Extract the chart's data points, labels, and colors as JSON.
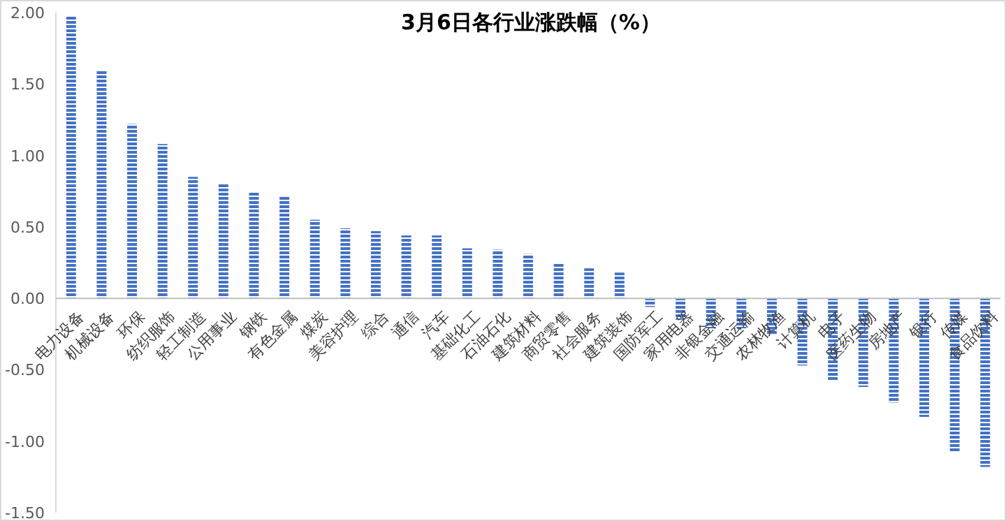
{
  "chart_data": {
    "type": "bar",
    "title": "3月6日各行业涨跌幅（%）",
    "categories": [
      "电力设备",
      "机械设备",
      "环保",
      "纺织服饰",
      "轻工制造",
      "公用事业",
      "钢铁",
      "有色金属",
      "煤炭",
      "美容护理",
      "综合",
      "通信",
      "汽车",
      "基础化工",
      "石油石化",
      "建筑材料",
      "商贸零售",
      "社会服务",
      "建筑装饰",
      "国防军工",
      "家用电器",
      "非银金融",
      "交通运输",
      "农林牧渔",
      "计算机",
      "电子",
      "医药生物",
      "房地产",
      "银行",
      "传媒",
      "食品饮料"
    ],
    "values": [
      1.98,
      1.59,
      1.22,
      1.08,
      0.85,
      0.8,
      0.74,
      0.72,
      0.55,
      0.49,
      0.47,
      0.44,
      0.44,
      0.35,
      0.34,
      0.31,
      0.25,
      0.21,
      0.18,
      -0.06,
      -0.15,
      -0.21,
      -0.21,
      -0.25,
      -0.47,
      -0.58,
      -0.62,
      -0.73,
      -0.83,
      -1.07,
      -1.18
    ],
    "color": "#4472c4",
    "ylim": [
      -1.5,
      2
    ],
    "yticks": [
      {
        "value": -1.5,
        "label": "-1.50"
      },
      {
        "value": -1,
        "label": "-1.00"
      },
      {
        "value": -0.5,
        "label": "-0.50"
      },
      {
        "value": 0,
        "label": "0.00"
      },
      {
        "value": 0.5,
        "label": "0.50"
      },
      {
        "value": 1,
        "label": "1.00"
      },
      {
        "value": 1.5,
        "label": "1.50"
      },
      {
        "value": 2,
        "label": "2.00"
      }
    ]
  }
}
